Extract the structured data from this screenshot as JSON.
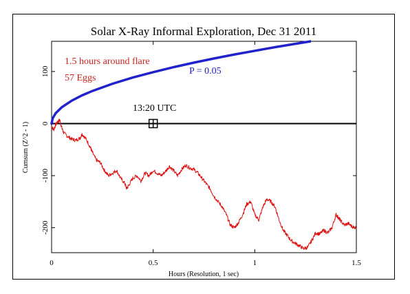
{
  "chart_data": {
    "type": "line",
    "title": "Solar X-Ray Informal Exploration, Dec 31 2011",
    "xlabel": "Hours (Resolution, 1 sec)",
    "ylabel": "Cumsum (Z^2 - 1)",
    "xlim": [
      0,
      1.5
    ],
    "ylim": [
      -248,
      158
    ],
    "x_ticks": [
      0,
      0.5,
      1,
      1.5
    ],
    "x_tick_labels": [
      "0",
      "0.5",
      "1",
      "1.5"
    ],
    "y_ticks": [
      -200,
      -100,
      0,
      100
    ],
    "y_tick_labels": [
      "-200",
      "-100",
      "0",
      "100"
    ],
    "annotations": {
      "hours": "1.5 hours around flare",
      "eggs": "57 Eggs",
      "p_value": "P = 0.05",
      "event_time": "13:20 UTC"
    },
    "event_marker": {
      "x": 0.5,
      "y": 0
    },
    "zero_line": 0,
    "colors": {
      "cumsum": "#dd1111",
      "probability": "#2222cc",
      "annotation_red": "#cc2222",
      "annotation_blue": "#2222bb"
    },
    "series": [
      {
        "key": "p05",
        "color": "#2222cc",
        "x": [
          0,
          0.005,
          0.02,
          0.05,
          0.1,
          0.15,
          0.2,
          0.3,
          0.4,
          0.5,
          0.6,
          0.7,
          0.8,
          0.9,
          1.0,
          1.1,
          1.2,
          1.3,
          1.315
        ],
        "values": [
          0,
          9.9,
          19.8,
          31.3,
          44.2,
          54.2,
          62.5,
          76.6,
          88.4,
          98.8,
          108.3,
          117.0,
          125.1,
          132.7,
          139.8,
          146.7,
          153.2,
          159.5,
          160.3
        ]
      },
      {
        "key": "cumsum",
        "color": "#dd1111",
        "x": [
          0,
          0.01,
          0.02,
          0.03,
          0.04,
          0.05,
          0.06,
          0.08,
          0.1,
          0.12,
          0.14,
          0.15,
          0.17,
          0.19,
          0.2,
          0.22,
          0.24,
          0.26,
          0.28,
          0.3,
          0.32,
          0.34,
          0.36,
          0.37,
          0.38,
          0.4,
          0.42,
          0.44,
          0.46,
          0.48,
          0.5,
          0.52,
          0.54,
          0.56,
          0.58,
          0.6,
          0.62,
          0.64,
          0.66,
          0.68,
          0.7,
          0.72,
          0.74,
          0.76,
          0.78,
          0.8,
          0.82,
          0.84,
          0.86,
          0.88,
          0.9,
          0.92,
          0.94,
          0.96,
          0.98,
          1.0,
          1.02,
          1.04,
          1.06,
          1.08,
          1.1,
          1.12,
          1.14,
          1.16,
          1.18,
          1.2,
          1.22,
          1.24,
          1.26,
          1.28,
          1.3,
          1.32,
          1.34,
          1.36,
          1.38,
          1.4,
          1.41,
          1.42,
          1.44,
          1.46,
          1.48,
          1.5
        ],
        "values": [
          -5,
          -12,
          -2,
          3,
          7,
          -8,
          -18,
          -25,
          -30,
          -32,
          -28,
          -20,
          -30,
          -45,
          -55,
          -70,
          -75,
          -90,
          -100,
          -95,
          -90,
          -105,
          -115,
          -125,
          -118,
          -105,
          -100,
          -110,
          -95,
          -100,
          -90,
          -95,
          -100,
          -92,
          -82,
          -90,
          -100,
          -88,
          -80,
          -85,
          -88,
          -95,
          -105,
          -115,
          -125,
          -140,
          -150,
          -160,
          -175,
          -195,
          -200,
          -190,
          -175,
          -155,
          -150,
          -175,
          -185,
          -160,
          -145,
          -150,
          -160,
          -185,
          -205,
          -215,
          -225,
          -230,
          -235,
          -240,
          -238,
          -225,
          -210,
          -212,
          -205,
          -210,
          -200,
          -175,
          -180,
          -185,
          -195,
          -192,
          -198,
          -200
        ]
      }
    ]
  }
}
